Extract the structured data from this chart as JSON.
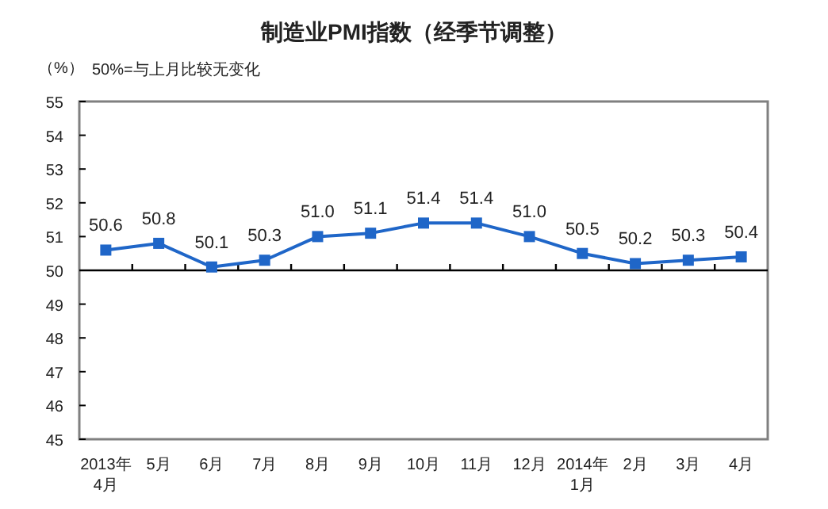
{
  "chart_data": {
    "type": "line",
    "title": "制造业PMI指数（经季节调整）",
    "ylabel": "（%）",
    "annotations": [
      "50%=与上月比较无变化"
    ],
    "categories": [
      "2013年\n4月",
      "5月",
      "6月",
      "7月",
      "8月",
      "9月",
      "10月",
      "11月",
      "12月",
      "2014年\n1月",
      "2月",
      "3月",
      "4月"
    ],
    "series": [
      {
        "color": "#1f66c8",
        "values": [
          50.6,
          50.8,
          50.1,
          50.3,
          51.0,
          51.1,
          51.4,
          51.4,
          51.0,
          50.5,
          50.2,
          50.3,
          50.4
        ]
      }
    ],
    "value_labels": [
      "50.6",
      "50.8",
      "50.1",
      "50.3",
      "51.0",
      "51.1",
      "51.4",
      "51.4",
      "51.0",
      "50.5",
      "50.2",
      "50.3",
      "50.4"
    ],
    "ylim": [
      45,
      55
    ],
    "yticks": [
      45,
      46,
      47,
      48,
      49,
      50,
      51,
      52,
      53,
      54,
      55
    ],
    "ref_lines": [
      {
        "axis": "y",
        "value": 50,
        "color": "#000000"
      }
    ],
    "marker": "square",
    "line_style": "solid",
    "grid": false
  }
}
